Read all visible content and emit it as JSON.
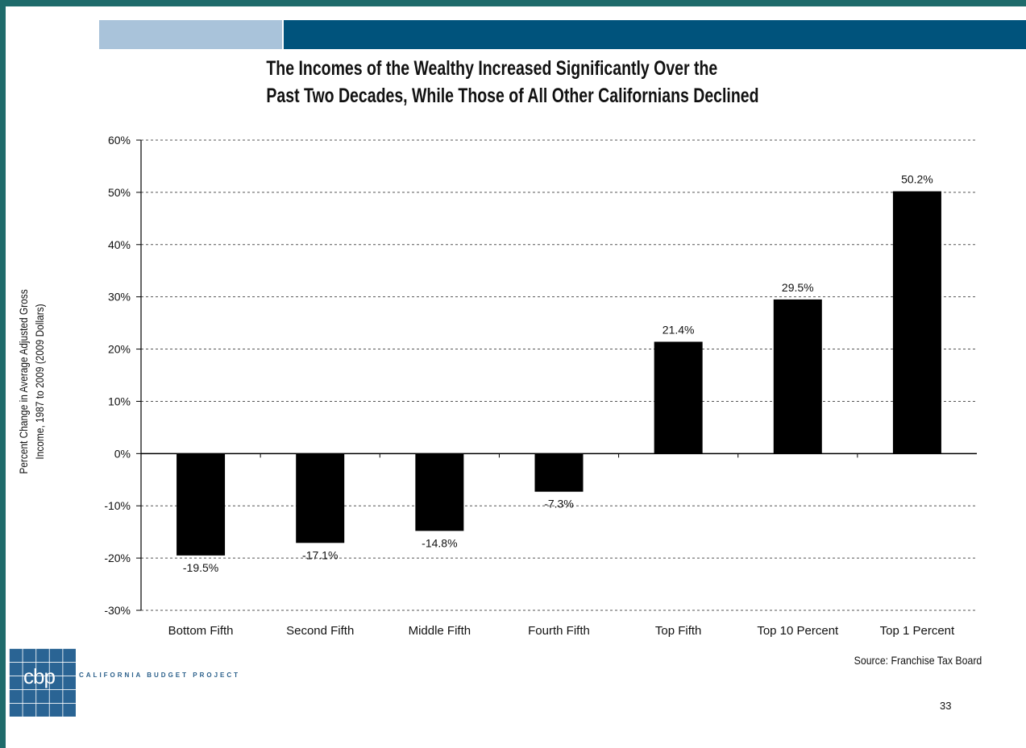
{
  "header": {
    "title_line1": "The Incomes of the Wealthy Increased Significantly Over the",
    "title_line2": "Past Two Decades, While Those of All Other Californians Declined"
  },
  "chart_data": {
    "type": "bar",
    "title": "The Incomes of the Wealthy Increased Significantly Over the Past Two Decades, While Those of All Other Californians Declined",
    "ylabel_line1": "Percent Change in Average Adjusted Gross",
    "ylabel_line2": "Income, 1987 to 2009 (2009 Dollars)",
    "xlabel": "",
    "categories": [
      "Bottom Fifth",
      "Second Fifth",
      "Middle Fifth",
      "Fourth Fifth",
      "Top Fifth",
      "Top 10 Percent",
      "Top 1 Percent"
    ],
    "values": [
      -19.5,
      -17.1,
      -14.8,
      -7.3,
      21.4,
      29.5,
      50.2
    ],
    "data_labels": [
      "-19.5%",
      "-17.1%",
      "-14.8%",
      "-7.3%",
      "21.4%",
      "29.5%",
      "50.2%"
    ],
    "ylim": [
      -30,
      60
    ],
    "yticks": [
      60,
      50,
      40,
      30,
      20,
      10,
      0,
      -10,
      -20,
      -30
    ],
    "ytick_labels": [
      "60%",
      "50%",
      "40%",
      "30%",
      "20%",
      "10%",
      "0%",
      "-10%",
      "-20%",
      "-30%"
    ],
    "grid": true,
    "bar_color": "#000000"
  },
  "footer": {
    "logo_text": "cbp",
    "org_name": "CALIFORNIA BUDGET PROJECT",
    "source": "Source: Franchise Tax Board",
    "page_number": "33"
  },
  "colors": {
    "band_light": "#a9c3da",
    "band_dark": "#00537c",
    "frame": "#1f6b6b"
  }
}
